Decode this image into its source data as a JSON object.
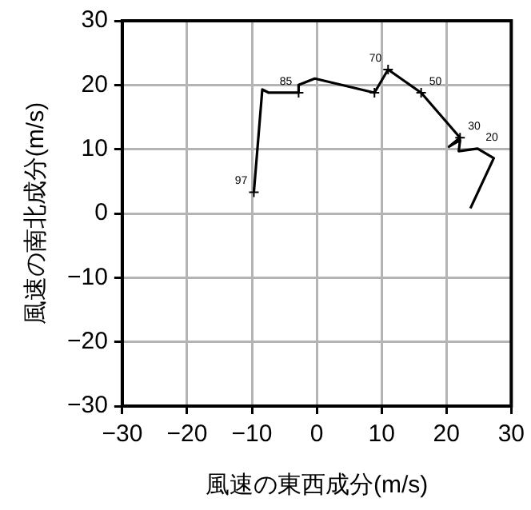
{
  "chart_data": {
    "type": "line",
    "xlabel": "風速の東西成分(m/s)",
    "ylabel": "風速の南北成分(m/s)",
    "series": [
      {
        "type": "line",
        "color": "#000000",
        "marker": "none",
        "x": [
          23.7,
          27.3,
          24.8,
          21.9,
          22.1,
          20.4,
          22.1,
          16.1,
          11.0,
          8.9,
          -0.3,
          -2.8,
          -2.8,
          -7.4,
          -8.4,
          -9.7
        ],
        "values": [
          0.8,
          8.6,
          10.1,
          9.7,
          11.4,
          10.4,
          11.8,
          18.8,
          22.4,
          18.8,
          21.0,
          20.0,
          18.8,
          18.8,
          19.3,
          3.3
        ]
      },
      {
        "type": "scatter",
        "color": "#000000",
        "marker": "cross",
        "x": [
          22.1,
          16.1,
          11.0,
          8.9,
          -2.8,
          -9.7
        ],
        "values": [
          11.8,
          18.8,
          22.4,
          18.8,
          18.8,
          3.3
        ]
      }
    ],
    "xlim": [
      -30,
      30
    ],
    "ylim": [
      -30,
      30
    ],
    "xticks": [
      {
        "value": -30,
        "label": "−30"
      },
      {
        "value": -20,
        "label": "−20"
      },
      {
        "value": -10,
        "label": "−10"
      },
      0,
      10,
      20,
      30
    ],
    "yticks": [
      {
        "value": -30,
        "label": "−30"
      },
      {
        "value": -20,
        "label": "−20"
      },
      {
        "value": -10,
        "label": "−10"
      },
      0,
      10,
      20,
      30
    ],
    "grid": true,
    "legend": false,
    "annotations": [
      {
        "text": "97",
        "x": -9.7,
        "y": 3.3
      },
      {
        "text": "85",
        "x": -2.8,
        "y": 18.8
      },
      {
        "text": "70",
        "x": 11.0,
        "y": 22.4
      },
      {
        "text": "50",
        "x": 16.1,
        "y": 18.8
      },
      {
        "text": "30",
        "x": 22.1,
        "y": 11.8
      },
      {
        "text": "20",
        "x": 24.8,
        "y": 10.1
      }
    ]
  }
}
